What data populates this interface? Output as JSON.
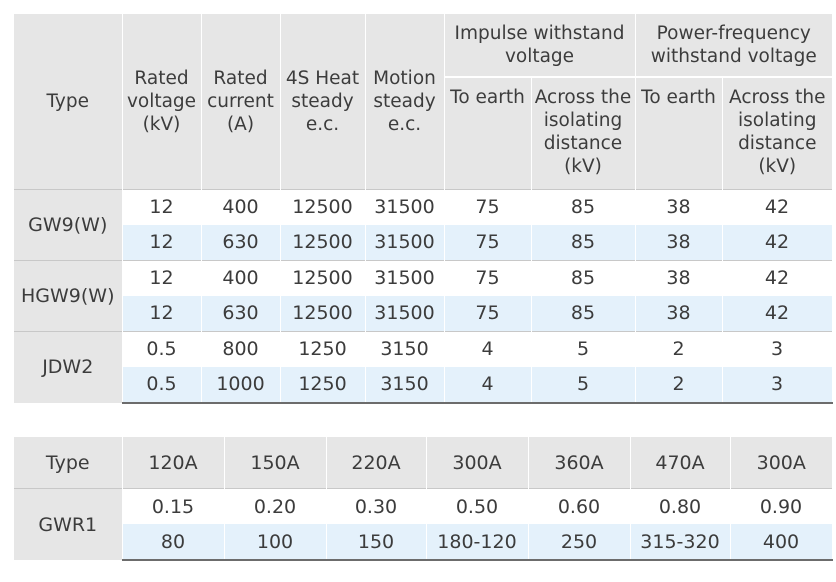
{
  "table1": {
    "headers": {
      "type": "Type",
      "rated_voltage": "Rated voltage (kV)",
      "rated_current": "Rated current (A)",
      "heat_steady": "4S Heat steady e.c.",
      "motion_steady": "Motion steady e.c.",
      "impulse_group": "Impulse withstand voltage",
      "power_group": "Power-frequency withstand voltage",
      "impulse_to_earth": "To earth",
      "impulse_across": "Across the isolating distance (kV)",
      "power_to_earth": "To earth",
      "power_across": "Across the isolating distance (kV)"
    },
    "groups": [
      {
        "type": "GW9(W)",
        "rows": [
          [
            "12",
            "400",
            "12500",
            "31500",
            "75",
            "85",
            "38",
            "42"
          ],
          [
            "12",
            "630",
            "12500",
            "31500",
            "75",
            "85",
            "38",
            "42"
          ]
        ]
      },
      {
        "type": "HGW9(W)",
        "rows": [
          [
            "12",
            "400",
            "12500",
            "31500",
            "75",
            "85",
            "38",
            "42"
          ],
          [
            "12",
            "630",
            "12500",
            "31500",
            "75",
            "85",
            "38",
            "42"
          ]
        ]
      },
      {
        "type": "JDW2",
        "rows": [
          [
            "0.5",
            "800",
            "1250",
            "3150",
            "4",
            "5",
            "2",
            "3"
          ],
          [
            "0.5",
            "1000",
            "1250",
            "3150",
            "4",
            "5",
            "2",
            "3"
          ]
        ]
      }
    ]
  },
  "table2": {
    "headers": [
      "Type",
      "120A",
      "150A",
      "220A",
      "300A",
      "360A",
      "470A",
      "300A"
    ],
    "type": "GWR1",
    "rows": [
      [
        "0.15",
        "0.20",
        "0.30",
        "0.50",
        "0.60",
        "0.80",
        "0.90"
      ],
      [
        "80",
        "100",
        "150",
        "180-120",
        "250",
        "315-320",
        "400"
      ]
    ]
  }
}
